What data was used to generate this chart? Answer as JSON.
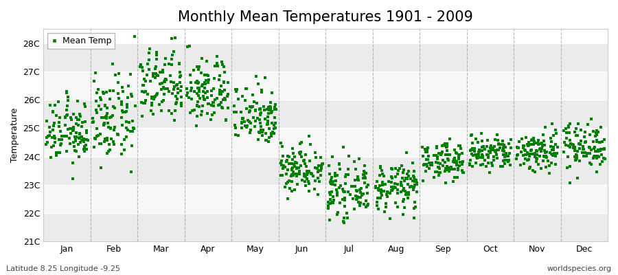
{
  "title": "Monthly Mean Temperatures 1901 - 2009",
  "ylabel": "Temperature",
  "bottom_left_label": "Latitude 8.25 Longitude -9.25",
  "bottom_right_label": "worldspecies.org",
  "legend_label": "Mean Temp",
  "marker_color": "#008000",
  "marker": "s",
  "marker_size": 2.5,
  "ylim": [
    21.0,
    28.5
  ],
  "yticks": [
    21,
    22,
    23,
    24,
    25,
    26,
    27,
    28
  ],
  "ytick_labels": [
    "21C",
    "22C",
    "23C",
    "24C",
    "25C",
    "26C",
    "27C",
    "28C"
  ],
  "months": [
    "Jan",
    "Feb",
    "Mar",
    "Apr",
    "May",
    "Jun",
    "Jul",
    "Aug",
    "Sep",
    "Oct",
    "Nov",
    "Dec"
  ],
  "start_year": 1901,
  "end_year": 2009,
  "background_color": "#ffffff",
  "plot_bg_color": "#ffffff",
  "stripe_colors": [
    "#ebebeb",
    "#f7f7f7"
  ],
  "grid_color": "#ffffff",
  "dashed_line_color": "#999999",
  "title_fontsize": 15,
  "label_fontsize": 9,
  "tick_fontsize": 9,
  "monthly_means": [
    24.85,
    25.3,
    26.5,
    26.3,
    25.5,
    23.6,
    22.8,
    22.9,
    23.85,
    24.1,
    24.2,
    24.4
  ],
  "monthly_stds": [
    0.55,
    0.75,
    0.65,
    0.6,
    0.55,
    0.45,
    0.45,
    0.42,
    0.32,
    0.32,
    0.38,
    0.42
  ]
}
